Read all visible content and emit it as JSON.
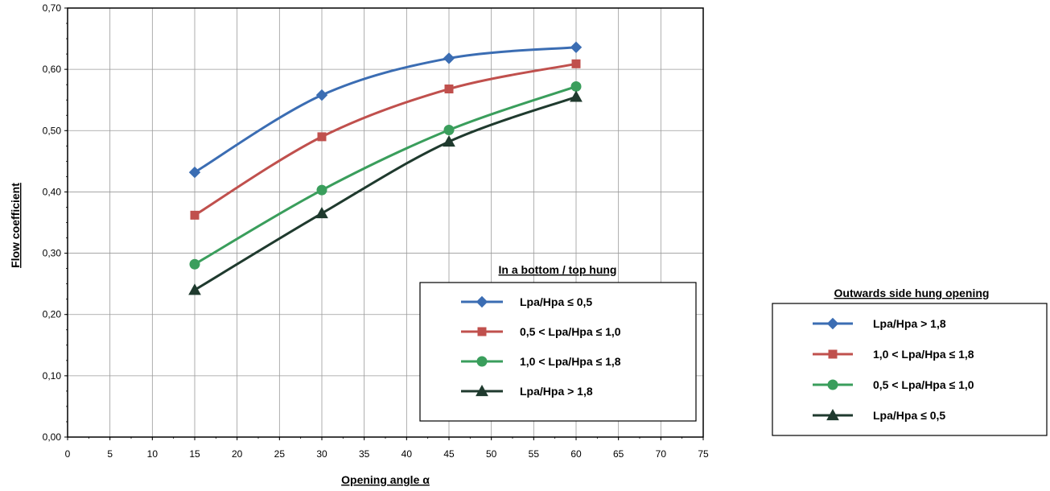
{
  "chart_data": {
    "type": "line",
    "xlabel": "Opening angle α",
    "ylabel": "Flow coefficient",
    "xlim": [
      0,
      75
    ],
    "ylim": [
      0,
      0.7
    ],
    "x_ticks": [
      "0",
      "5",
      "10",
      "15",
      "20",
      "25",
      "30",
      "35",
      "40",
      "45",
      "50",
      "55",
      "60",
      "65",
      "70",
      "75"
    ],
    "y_ticks": [
      "0,00",
      "0,10",
      "0,20",
      "0,30",
      "0,40",
      "0,50",
      "0,60",
      "0,70"
    ],
    "grid": true,
    "x": [
      15,
      30,
      45,
      60
    ],
    "series": [
      {
        "key": "blue",
        "values": [
          0.432,
          0.558,
          0.618,
          0.636
        ]
      },
      {
        "key": "red",
        "values": [
          0.362,
          0.49,
          0.568,
          0.609
        ]
      },
      {
        "key": "green",
        "values": [
          0.282,
          0.403,
          0.501,
          0.572
        ]
      },
      {
        "key": "dark",
        "values": [
          0.24,
          0.365,
          0.482,
          0.555
        ]
      }
    ],
    "styles": {
      "blue": {
        "color": "#3b6db3",
        "marker": "diamond"
      },
      "red": {
        "color": "#c0504d",
        "marker": "square"
      },
      "green": {
        "color": "#3a9e5c",
        "marker": "circle"
      },
      "dark": {
        "color": "#1f3a2e",
        "marker": "triangle"
      }
    },
    "legends": [
      {
        "title": "In a bottom / top hung",
        "placement": "lower-right inside plot",
        "entries": [
          {
            "key": "blue",
            "label": "Lpa/Hpa ≤ 0,5"
          },
          {
            "key": "red",
            "label": "0,5 < Lpa/Hpa ≤ 1,0"
          },
          {
            "key": "green",
            "label": "1,0 < Lpa/Hpa ≤ 1,8"
          },
          {
            "key": "dark",
            "label": "Lpa/Hpa > 1,8"
          }
        ]
      },
      {
        "title": "Outwards side hung opening",
        "placement": "right of plot",
        "entries": [
          {
            "key": "blue",
            "label": "Lpa/Hpa > 1,8"
          },
          {
            "key": "red",
            "label": "1,0 < Lpa/Hpa ≤ 1,8"
          },
          {
            "key": "green",
            "label": "0,5 < Lpa/Hpa ≤ 1,0"
          },
          {
            "key": "dark",
            "label": "Lpa/Hpa ≤ 0,5"
          }
        ]
      }
    ]
  }
}
